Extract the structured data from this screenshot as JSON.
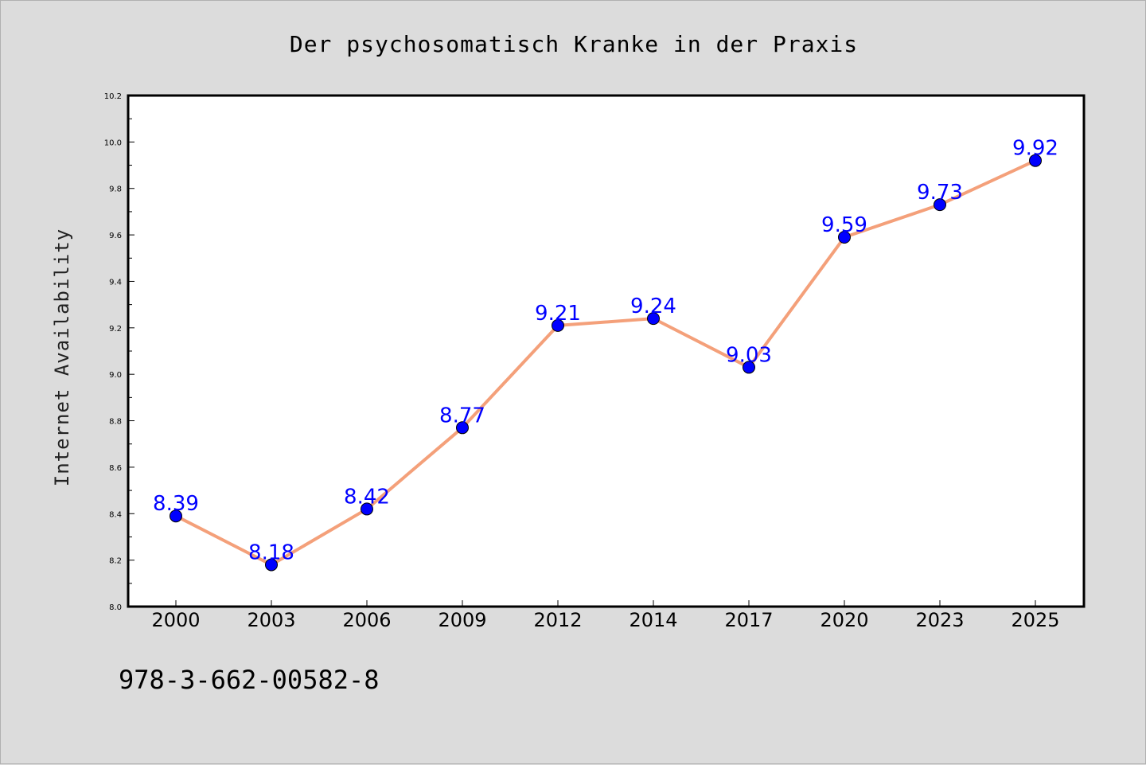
{
  "chart_data": {
    "type": "line",
    "title": "Der psychosomatisch Kranke in der Praxis",
    "xlabel": "",
    "ylabel": "Internet Availability",
    "categories": [
      "2000",
      "2003",
      "2006",
      "2009",
      "2012",
      "2014",
      "2017",
      "2020",
      "2023",
      "2025"
    ],
    "series": [
      {
        "values": [
          8.39,
          8.18,
          8.42,
          8.77,
          9.21,
          9.24,
          9.03,
          9.59,
          9.73,
          9.92
        ],
        "line_color": "#f4a07a",
        "marker_color": "#0000ff"
      }
    ],
    "data_labels": [
      "8.39",
      "8.18",
      "8.42",
      "8.77",
      "9.21",
      "9.24",
      "9.03",
      "9.59",
      "9.73",
      "9.92"
    ],
    "ylim": [
      8.0,
      10.2
    ],
    "yticks": [
      "8.0",
      "8.2",
      "8.4",
      "8.6",
      "8.8",
      "9.0",
      "9.2",
      "9.4",
      "9.6",
      "9.8",
      "10.0",
      "10.2"
    ],
    "grid": false,
    "legend": "none"
  },
  "footer": {
    "isbn": "978-3-662-00582-8"
  }
}
